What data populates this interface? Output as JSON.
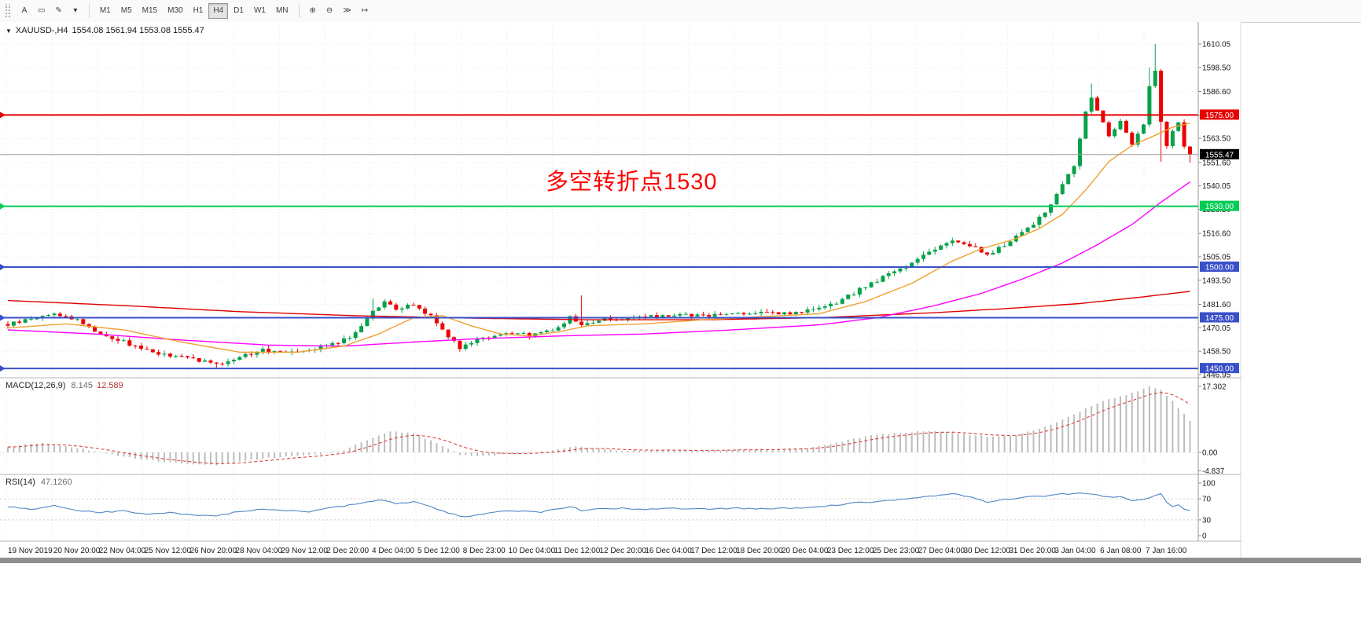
{
  "icons": {
    "collapse_triangle": "▼"
  },
  "toolbar": {
    "tools": [
      {
        "name": "text-tool",
        "glyph": "A"
      },
      {
        "name": "frame-tool",
        "glyph": "▭"
      },
      {
        "name": "draw-tool",
        "glyph": "✎"
      },
      {
        "name": "tools-dropdown",
        "glyph": "▾"
      }
    ],
    "timeframes": [
      {
        "label": "M1"
      },
      {
        "label": "M5"
      },
      {
        "label": "M15"
      },
      {
        "label": "M30"
      },
      {
        "label": "H1"
      },
      {
        "label": "H4",
        "active": true
      },
      {
        "label": "D1"
      },
      {
        "label": "W1"
      },
      {
        "label": "MN"
      }
    ],
    "right_tools": [
      {
        "name": "zoom-in-tool",
        "glyph": "⊕"
      },
      {
        "name": "zoom-out-tool",
        "glyph": "⊖"
      },
      {
        "name": "auto-scroll-tool",
        "glyph": "≫"
      },
      {
        "name": "chart-shift-tool",
        "glyph": "↦"
      }
    ]
  },
  "chart_data": {
    "type": "candlestick",
    "symbol": "XAUUSD-",
    "timeframe": "H4",
    "title_line": {
      "symbol_label": "XAUUSD-,H4",
      "ohlc_label": "1554.08 1561.94 1553.08 1555.47"
    },
    "ohlc_display": {
      "open": 1554.08,
      "high": 1561.94,
      "low": 1553.08,
      "close": 1555.47
    },
    "annotation": {
      "text": "多空转折点1530",
      "color": "#ff0000"
    },
    "price_axis": {
      "ticks": [
        1610.05,
        1598.5,
        1586.6,
        1574.7,
        1563.5,
        1551.6,
        1540.05,
        1528.5,
        1516.6,
        1505.05,
        1493.5,
        1481.6,
        1470.05,
        1458.5,
        1446.95
      ],
      "current_price": 1555.47,
      "current_price_bg": "#000000"
    },
    "hlines": [
      {
        "price": 1575.0,
        "label": "1575.00",
        "color": "#e60000",
        "width": 2
      },
      {
        "price": 1530.0,
        "label": "1530.00",
        "color": "#00cc55",
        "width": 2
      },
      {
        "price": 1500.0,
        "label": "1500.00",
        "color": "#3a50c8",
        "width": 2
      },
      {
        "price": 1475.0,
        "label": "1475.00",
        "color": "#3a50c8",
        "width": 2
      },
      {
        "price": 1450.0,
        "label": "1450.00",
        "color": "#3a50c8",
        "width": 2
      }
    ],
    "x_labels": [
      "19 Nov 2019",
      "20 Nov 20:00",
      "22 Nov 04:00",
      "25 Nov 12:00",
      "26 Nov 20:00",
      "28 Nov 04:00",
      "29 Nov 12:00",
      "2 Dec 20:00",
      "4 Dec 04:00",
      "5 Dec 12:00",
      "8 Dec 23:00",
      "10 Dec 04:00",
      "11 Dec 12:00",
      "12 Dec 20:00",
      "16 Dec 04:00",
      "17 Dec 12:00",
      "18 Dec 20:00",
      "20 Dec 04:00",
      "23 Dec 12:00",
      "25 Dec 23:00",
      "27 Dec 04:00",
      "30 Dec 12:00",
      "31 Dec 20:00",
      "3 Jan 04:00",
      "6 Jan 08:00",
      "7 Jan 16:00"
    ],
    "candles": {
      "count": 205,
      "noise": 0.9,
      "close_anchors": [
        [
          0,
          1471.5
        ],
        [
          4,
          1474.5
        ],
        [
          8,
          1477
        ],
        [
          12,
          1474
        ],
        [
          16,
          1467
        ],
        [
          20,
          1463
        ],
        [
          24,
          1459
        ],
        [
          28,
          1456
        ],
        [
          32,
          1455
        ],
        [
          36,
          1451.5
        ],
        [
          40,
          1456
        ],
        [
          44,
          1459
        ],
        [
          48,
          1458.5
        ],
        [
          52,
          1459.5
        ],
        [
          56,
          1462
        ],
        [
          60,
          1467
        ],
        [
          63,
          1479
        ],
        [
          65,
          1482.5
        ],
        [
          67,
          1479
        ],
        [
          70,
          1481.5
        ],
        [
          73,
          1476
        ],
        [
          76,
          1466
        ],
        [
          78,
          1460.5
        ],
        [
          82,
          1465.5
        ],
        [
          86,
          1467
        ],
        [
          90,
          1466.5
        ],
        [
          94,
          1469
        ],
        [
          97,
          1475
        ],
        [
          99,
          1471.5
        ],
        [
          103,
          1474.5
        ],
        [
          107,
          1474.5
        ],
        [
          111,
          1475.5
        ],
        [
          115,
          1476.5
        ],
        [
          119,
          1476
        ],
        [
          123,
          1476.5
        ],
        [
          127,
          1477.5
        ],
        [
          131,
          1477
        ],
        [
          135,
          1477.5
        ],
        [
          139,
          1478.5
        ],
        [
          143,
          1482
        ],
        [
          147,
          1489
        ],
        [
          151,
          1495
        ],
        [
          155,
          1500.5
        ],
        [
          159,
          1508
        ],
        [
          163,
          1513
        ],
        [
          166,
          1511
        ],
        [
          169,
          1505.5
        ],
        [
          172,
          1511
        ],
        [
          175,
          1517
        ],
        [
          178,
          1524
        ],
        [
          180,
          1531
        ],
        [
          182,
          1541
        ],
        [
          184,
          1550
        ],
        [
          186,
          1576
        ],
        [
          187,
          1584
        ],
        [
          188,
          1578
        ],
        [
          190,
          1564
        ],
        [
          192,
          1572
        ],
        [
          194,
          1561
        ],
        [
          196,
          1570
        ],
        [
          197,
          1590
        ],
        [
          198,
          1597
        ],
        [
          199,
          1572
        ],
        [
          200,
          1560
        ],
        [
          201,
          1567
        ],
        [
          202,
          1572
        ],
        [
          203,
          1560
        ],
        [
          204,
          1555.47
        ]
      ],
      "wick_overrides": [
        {
          "i": 36,
          "low": 1450.4
        },
        {
          "i": 63,
          "high": 1484.6
        },
        {
          "i": 78,
          "low": 1458.3
        },
        {
          "i": 99,
          "high": 1486.0
        },
        {
          "i": 187,
          "high": 1590.5
        },
        {
          "i": 197,
          "high": 1598.5
        },
        {
          "i": 198,
          "high": 1610.05
        },
        {
          "i": 199,
          "low": 1552.0
        },
        {
          "i": 204,
          "low": 1551.5
        }
      ]
    },
    "ma_lines": [
      {
        "name": "ma-slow",
        "color": "#e00000",
        "anchors": [
          [
            0,
            1483.5
          ],
          [
            20,
            1481
          ],
          [
            40,
            1478
          ],
          [
            60,
            1476
          ],
          [
            80,
            1474.8
          ],
          [
            100,
            1474
          ],
          [
            120,
            1474
          ],
          [
            140,
            1475
          ],
          [
            160,
            1477.5
          ],
          [
            175,
            1480
          ],
          [
            185,
            1482
          ],
          [
            195,
            1485
          ],
          [
            204,
            1488
          ]
        ]
      },
      {
        "name": "ma-mid",
        "color": "#ff00ff",
        "anchors": [
          [
            0,
            1469
          ],
          [
            15,
            1467
          ],
          [
            30,
            1464
          ],
          [
            45,
            1461.5
          ],
          [
            58,
            1461
          ],
          [
            70,
            1463
          ],
          [
            80,
            1464.5
          ],
          [
            95,
            1466
          ],
          [
            110,
            1467
          ],
          [
            125,
            1469
          ],
          [
            140,
            1471.5
          ],
          [
            150,
            1475
          ],
          [
            160,
            1481
          ],
          [
            168,
            1487
          ],
          [
            175,
            1494
          ],
          [
            182,
            1502
          ],
          [
            188,
            1511
          ],
          [
            194,
            1521
          ],
          [
            199,
            1532
          ],
          [
            204,
            1542
          ]
        ]
      },
      {
        "name": "ma-fast",
        "color": "#f0a030",
        "anchors": [
          [
            0,
            1470
          ],
          [
            10,
            1472
          ],
          [
            20,
            1469
          ],
          [
            30,
            1463
          ],
          [
            40,
            1458
          ],
          [
            50,
            1458
          ],
          [
            58,
            1461
          ],
          [
            64,
            1467
          ],
          [
            70,
            1475
          ],
          [
            75,
            1476
          ],
          [
            80,
            1471
          ],
          [
            85,
            1467
          ],
          [
            90,
            1466
          ],
          [
            95,
            1468
          ],
          [
            100,
            1471
          ],
          [
            110,
            1472
          ],
          [
            120,
            1474
          ],
          [
            130,
            1475.5
          ],
          [
            140,
            1477
          ],
          [
            148,
            1483
          ],
          [
            156,
            1492
          ],
          [
            163,
            1503
          ],
          [
            168,
            1509
          ],
          [
            174,
            1514
          ],
          [
            178,
            1519
          ],
          [
            182,
            1526
          ],
          [
            186,
            1538
          ],
          [
            190,
            1552
          ],
          [
            194,
            1560
          ],
          [
            198,
            1565
          ],
          [
            201,
            1569
          ],
          [
            204,
            1571
          ]
        ]
      }
    ],
    "macd": {
      "label": "MACD(12,26,9)",
      "value_main": "8.145",
      "value_signal": "12.589",
      "ticks": [
        "17.302",
        "0.00",
        "-4.837"
      ],
      "hist_color": "#bdbdbd",
      "signal_color": "#d94040",
      "hist_anchors": [
        [
          0,
          1.5
        ],
        [
          6,
          2.5
        ],
        [
          12,
          1.2
        ],
        [
          18,
          -0.6
        ],
        [
          24,
          -2
        ],
        [
          30,
          -3
        ],
        [
          36,
          -3.3
        ],
        [
          42,
          -2
        ],
        [
          48,
          -1
        ],
        [
          54,
          -0.4
        ],
        [
          58,
          0.6
        ],
        [
          62,
          3.2
        ],
        [
          66,
          5.6
        ],
        [
          70,
          5
        ],
        [
          74,
          2.4
        ],
        [
          78,
          -0.6
        ],
        [
          82,
          -1
        ],
        [
          86,
          -0.4
        ],
        [
          90,
          -0.3
        ],
        [
          94,
          0.6
        ],
        [
          98,
          1.6
        ],
        [
          102,
          1
        ],
        [
          106,
          0.5
        ],
        [
          110,
          0.5
        ],
        [
          114,
          0.6
        ],
        [
          118,
          0.4
        ],
        [
          122,
          0.5
        ],
        [
          126,
          0.8
        ],
        [
          130,
          0.8
        ],
        [
          134,
          0.9
        ],
        [
          138,
          1.1
        ],
        [
          142,
          2.2
        ],
        [
          146,
          3.6
        ],
        [
          150,
          4.6
        ],
        [
          154,
          5.1
        ],
        [
          158,
          5.6
        ],
        [
          162,
          5.5
        ],
        [
          166,
          4.6
        ],
        [
          170,
          4.1
        ],
        [
          174,
          4.6
        ],
        [
          178,
          6.2
        ],
        [
          182,
          8.6
        ],
        [
          186,
          11.5
        ],
        [
          190,
          14
        ],
        [
          194,
          15.5
        ],
        [
          197,
          17.3
        ],
        [
          199,
          16.5
        ],
        [
          201,
          13.5
        ],
        [
          203,
          10
        ],
        [
          204,
          8.145
        ]
      ]
    },
    "rsi": {
      "label": "RSI(14)",
      "value": "47.1260",
      "ticks": [
        100,
        70,
        30,
        0
      ],
      "levels": [
        70,
        30
      ],
      "color": "#4f86c6",
      "anchors": [
        [
          0,
          55
        ],
        [
          4,
          50
        ],
        [
          8,
          57
        ],
        [
          12,
          48
        ],
        [
          16,
          44
        ],
        [
          20,
          47
        ],
        [
          24,
          41
        ],
        [
          28,
          44
        ],
        [
          32,
          39
        ],
        [
          36,
          37
        ],
        [
          40,
          46
        ],
        [
          44,
          51
        ],
        [
          48,
          48
        ],
        [
          52,
          46
        ],
        [
          56,
          53
        ],
        [
          60,
          60
        ],
        [
          63,
          66
        ],
        [
          65,
          68
        ],
        [
          67,
          61
        ],
        [
          70,
          64
        ],
        [
          73,
          55
        ],
        [
          76,
          44
        ],
        [
          78,
          36
        ],
        [
          80,
          37
        ],
        [
          84,
          45
        ],
        [
          88,
          47
        ],
        [
          92,
          45
        ],
        [
          95,
          51
        ],
        [
          97,
          56
        ],
        [
          99,
          48
        ],
        [
          102,
          51
        ],
        [
          106,
          52
        ],
        [
          110,
          50
        ],
        [
          114,
          52
        ],
        [
          118,
          50
        ],
        [
          122,
          51
        ],
        [
          126,
          52
        ],
        [
          130,
          51
        ],
        [
          134,
          52
        ],
        [
          138,
          53
        ],
        [
          142,
          57
        ],
        [
          146,
          62
        ],
        [
          150,
          65
        ],
        [
          154,
          69
        ],
        [
          158,
          73
        ],
        [
          161,
          77
        ],
        [
          163,
          80
        ],
        [
          166,
          73
        ],
        [
          169,
          64
        ],
        [
          172,
          69
        ],
        [
          175,
          73
        ],
        [
          178,
          75
        ],
        [
          180,
          77
        ],
        [
          182,
          79
        ],
        [
          184,
          80
        ],
        [
          186,
          81
        ],
        [
          188,
          77
        ],
        [
          190,
          73
        ],
        [
          192,
          75
        ],
        [
          194,
          66
        ],
        [
          196,
          69
        ],
        [
          198,
          76
        ],
        [
          199,
          79
        ],
        [
          200,
          64
        ],
        [
          201,
          55
        ],
        [
          202,
          59
        ],
        [
          203,
          51
        ],
        [
          204,
          47.126
        ]
      ]
    },
    "colors": {
      "up": "#07a24a",
      "down": "#ee0000",
      "grid": "#e7e7e7",
      "bid_line": "#9a9a9a",
      "separator": "#b4b4b4",
      "axis_text": "#1a1a1a"
    }
  }
}
